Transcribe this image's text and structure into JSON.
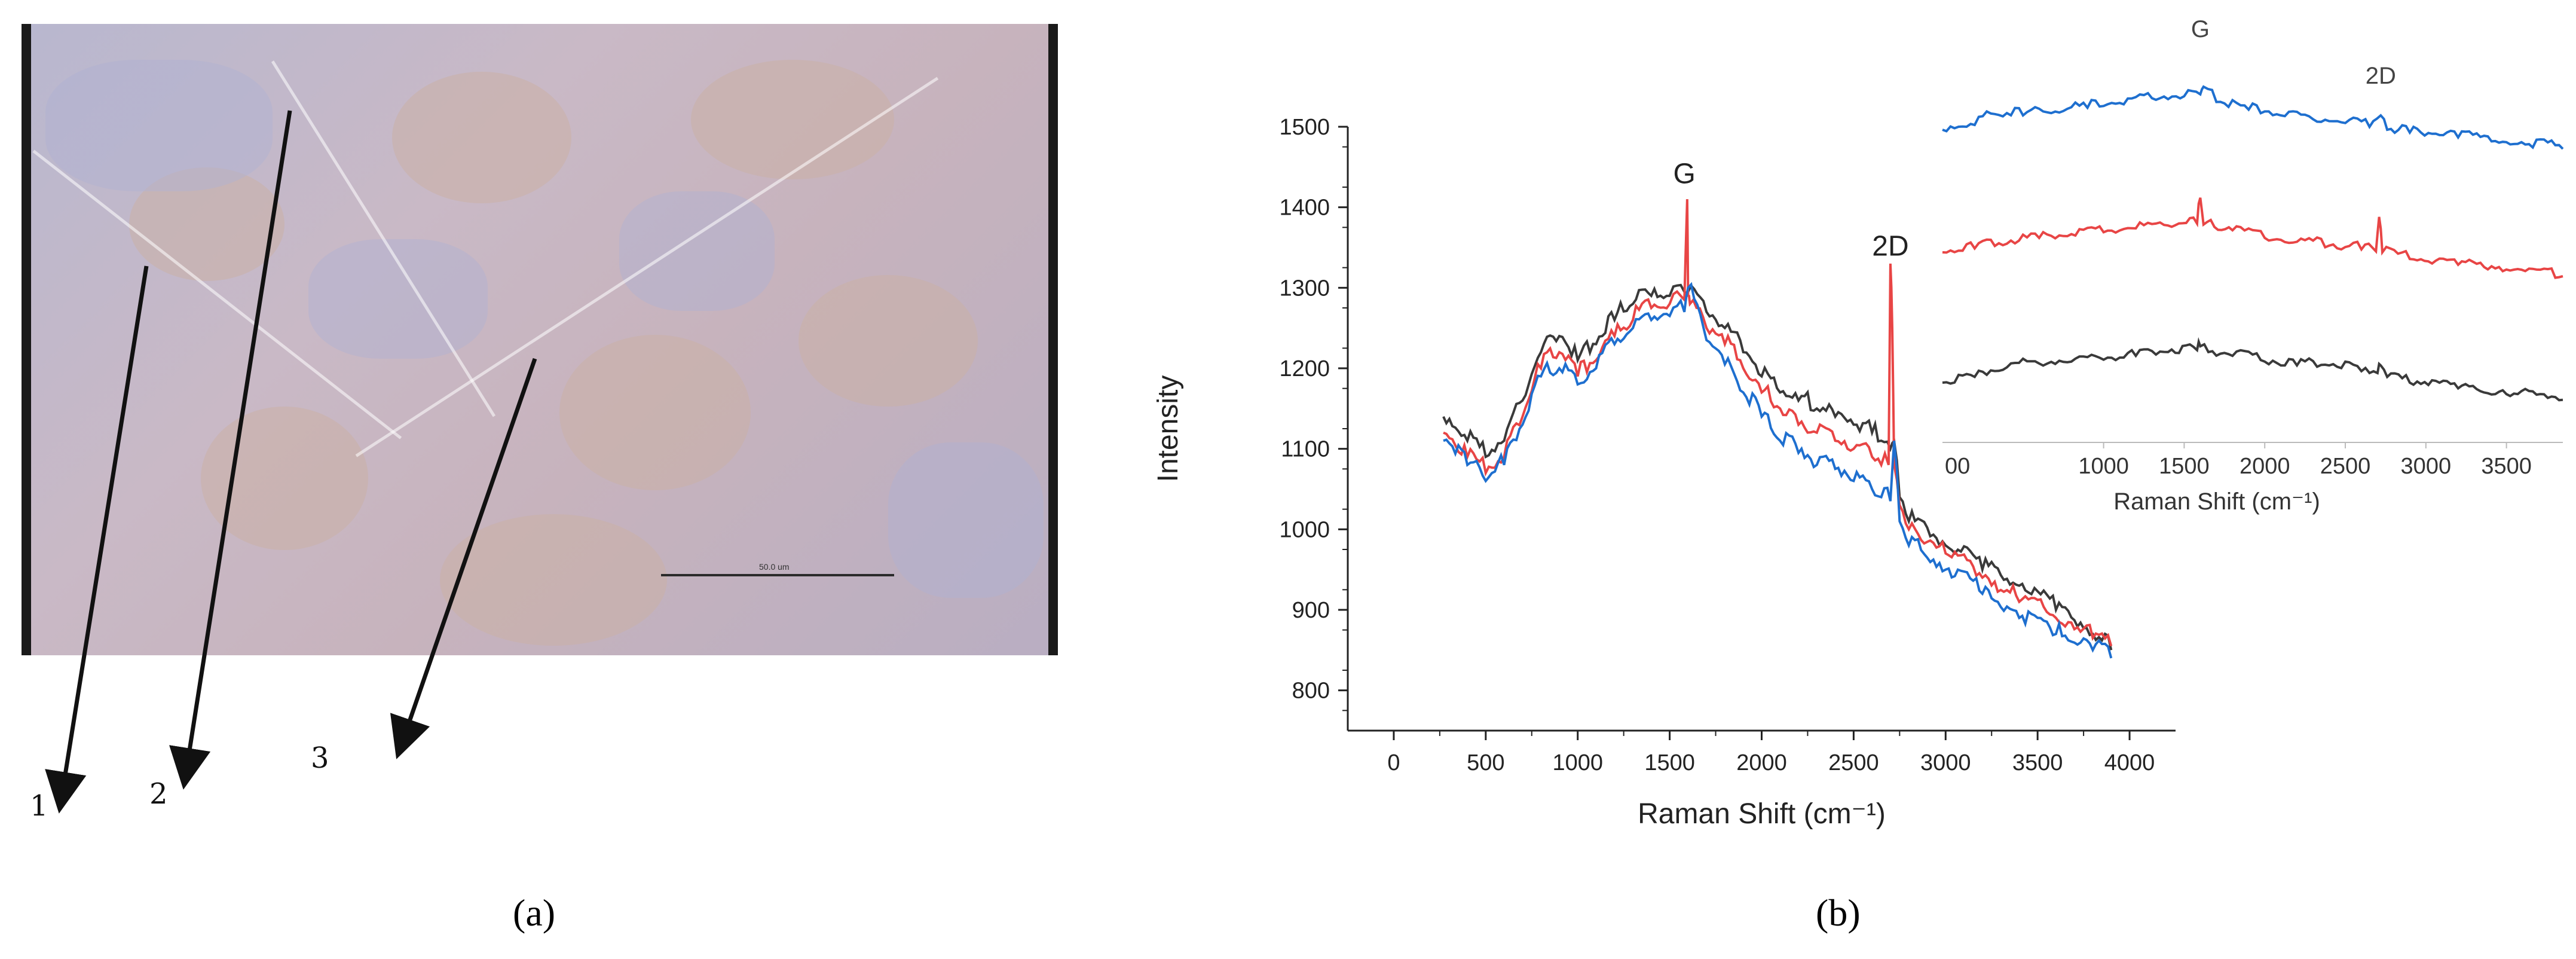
{
  "panel_a": {
    "caption": "(a)",
    "scale_label": "50.0 um",
    "point_labels": [
      "1",
      "2",
      "3"
    ]
  },
  "panel_b": {
    "caption": "(b)"
  },
  "colors": {
    "black_series": "#3a3a3a",
    "red_series": "#e84545",
    "blue_series": "#1e6fcf"
  },
  "chart_data": [
    {
      "type": "line",
      "xlabel": "Raman Shift (cm⁻¹)",
      "ylabel": "Intensity",
      "xlim": [
        -250,
        4250
      ],
      "ylim": [
        750,
        1500
      ],
      "xticks": [
        0,
        500,
        1000,
        1500,
        2000,
        2500,
        3000,
        3500,
        4000
      ],
      "yticks": [
        800,
        900,
        1000,
        1100,
        1200,
        1300,
        1400,
        1500
      ],
      "annotations": [
        {
          "text": "G",
          "x": 1580,
          "y": 1430
        },
        {
          "text": "2D",
          "x": 2700,
          "y": 1340
        }
      ],
      "series": [
        {
          "color": "#3a3a3a",
          "x": [
            270,
            400,
            500,
            600,
            700,
            800,
            900,
            1000,
            1100,
            1200,
            1300,
            1400,
            1500,
            1580,
            1600,
            1700,
            1800,
            1900,
            2000,
            2100,
            2200,
            2300,
            2400,
            2500,
            2600,
            2650,
            2700,
            2720,
            2750,
            2800,
            3000,
            3200,
            3400,
            3600,
            3800,
            3900
          ],
          "y": [
            1140,
            1110,
            1090,
            1110,
            1160,
            1220,
            1240,
            1210,
            1230,
            1260,
            1280,
            1290,
            1290,
            1295,
            1295,
            1270,
            1250,
            1220,
            1190,
            1170,
            1160,
            1150,
            1140,
            1130,
            1120,
            1110,
            1100,
            1110,
            1040,
            1010,
            980,
            950,
            930,
            900,
            870,
            850
          ]
        },
        {
          "color": "#e84545",
          "x": [
            270,
            400,
            500,
            600,
            700,
            800,
            900,
            1000,
            1100,
            1200,
            1300,
            1400,
            1500,
            1580,
            1595,
            1600,
            1610,
            1700,
            1800,
            1900,
            2000,
            2100,
            2200,
            2300,
            2400,
            2500,
            2600,
            2650,
            2690,
            2700,
            2710,
            2720,
            2750,
            2800,
            3000,
            3200,
            3400,
            3600,
            3800,
            3900
          ],
          "y": [
            1120,
            1090,
            1070,
            1090,
            1140,
            1200,
            1220,
            1190,
            1210,
            1240,
            1260,
            1275,
            1280,
            1285,
            1410,
            1290,
            1280,
            1250,
            1230,
            1200,
            1170,
            1150,
            1130,
            1120,
            1110,
            1100,
            1090,
            1080,
            1080,
            1330,
            1250,
            1080,
            1030,
            1000,
            970,
            940,
            910,
            890,
            865,
            855
          ]
        },
        {
          "color": "#1e6fcf",
          "x": [
            270,
            400,
            500,
            600,
            700,
            800,
            900,
            1000,
            1100,
            1200,
            1300,
            1400,
            1500,
            1580,
            1600,
            1700,
            1800,
            1900,
            2000,
            2100,
            2200,
            2300,
            2400,
            2500,
            2600,
            2650,
            2700,
            2720,
            2750,
            2800,
            3000,
            3200,
            3400,
            3600,
            3800,
            3900
          ],
          "y": [
            1110,
            1080,
            1060,
            1080,
            1130,
            1190,
            1200,
            1180,
            1200,
            1230,
            1250,
            1260,
            1265,
            1270,
            1300,
            1235,
            1205,
            1170,
            1140,
            1110,
            1095,
            1080,
            1075,
            1060,
            1050,
            1040,
            1035,
            1110,
            1010,
            980,
            950,
            920,
            890,
            870,
            850,
            840
          ]
        }
      ]
    },
    {
      "type": "line",
      "xlabel": "Raman Shift (cm⁻¹)",
      "xlim": [
        0,
        3850
      ],
      "xticks": [
        1000,
        1500,
        2000,
        2500,
        3000,
        3500
      ],
      "first_tick_text": "00",
      "annotations": [
        {
          "text": "G",
          "x": 1600
        },
        {
          "text": "2D",
          "x": 2720
        }
      ],
      "series": [
        {
          "color": "#1e6fcf",
          "x": [
            0,
            200,
            300,
            500,
            700,
            900,
            1100,
            1300,
            1500,
            1600,
            1620,
            1700,
            1900,
            2100,
            2300,
            2500,
            2650,
            2720,
            2760,
            2900,
            3200,
            3500,
            3850
          ],
          "y": [
            0.05,
            0.1,
            0.22,
            0.2,
            0.24,
            0.28,
            0.33,
            0.38,
            0.4,
            0.42,
            0.5,
            0.34,
            0.26,
            0.2,
            0.16,
            0.12,
            0.08,
            0.2,
            0.05,
            0.02,
            -0.03,
            -0.08,
            -0.15
          ]
        },
        {
          "color": "#e84545",
          "x": [
            0,
            200,
            400,
            600,
            800,
            1000,
            1200,
            1400,
            1580,
            1600,
            1620,
            1800,
            2000,
            2200,
            2400,
            2600,
            2690,
            2710,
            2730,
            2900,
            3200,
            3500,
            3850
          ],
          "y": [
            0.05,
            0.09,
            0.14,
            0.2,
            0.24,
            0.26,
            0.3,
            0.33,
            0.35,
            0.62,
            0.34,
            0.28,
            0.2,
            0.16,
            0.12,
            0.08,
            0.06,
            0.42,
            0.05,
            -0.02,
            -0.08,
            -0.13,
            -0.2
          ]
        },
        {
          "color": "#3a3a3a",
          "x": [
            0,
            200,
            400,
            600,
            800,
            1000,
            1200,
            1400,
            1580,
            1600,
            1650,
            1800,
            2000,
            2200,
            2400,
            2600,
            2700,
            2720,
            2760,
            2900,
            3200,
            3500,
            3850
          ],
          "y": [
            0.0,
            0.06,
            0.16,
            0.2,
            0.22,
            0.24,
            0.28,
            0.32,
            0.34,
            0.38,
            0.32,
            0.28,
            0.22,
            0.18,
            0.18,
            0.12,
            0.1,
            0.18,
            0.06,
            0.0,
            -0.06,
            -0.12,
            -0.18
          ]
        }
      ]
    }
  ]
}
